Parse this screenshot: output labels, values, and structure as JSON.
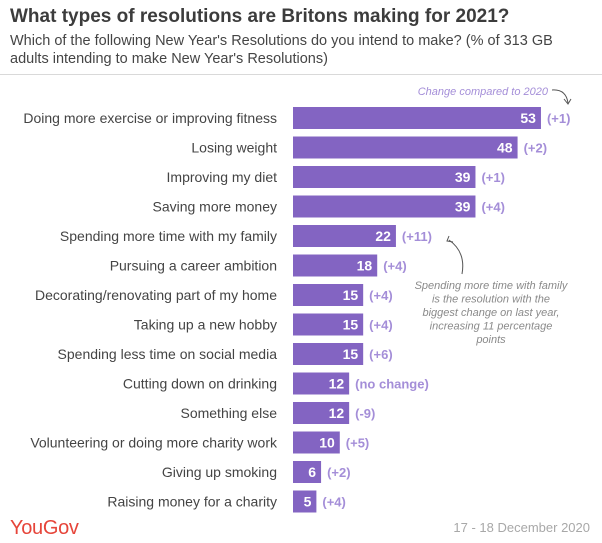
{
  "header": {
    "title": "What types of resolutions are Britons making for 2021?",
    "subtitle": "Which of the following New Year's Resolutions do you intend to make? (% of 313 GB adults intending to make New Year's Resolutions)"
  },
  "footer": {
    "brand": "YouGov",
    "date": "17 - 18 December 2020"
  },
  "colors": {
    "bar": "#8364c2",
    "change_text": "#a48ed8",
    "annotation_text": "#8a8a8a",
    "brand": "#e6453a"
  },
  "chart_data": {
    "type": "bar",
    "orientation": "horizontal",
    "categories": [
      "Doing more exercise or improving fitness",
      "Losing weight",
      "Improving my diet",
      "Saving more money",
      "Spending more time with my family",
      "Pursuing a career ambition",
      "Decorating/renovating part of my home",
      "Taking up a new hobby",
      "Spending less time on social media",
      "Cutting down on drinking",
      "Something else",
      "Volunteering or doing more charity work",
      "Giving up smoking",
      "Raising money for a charity"
    ],
    "values": [
      53,
      48,
      39,
      39,
      22,
      18,
      15,
      15,
      15,
      12,
      12,
      10,
      6,
      5
    ],
    "change_labels": [
      "(+1)",
      "(+2)",
      "(+1)",
      "(+4)",
      "(+11)",
      "(+4)",
      "(+4)",
      "(+4)",
      "(+6)",
      "(no change)",
      "(-9)",
      "(+5)",
      "(+2)",
      "(+4)"
    ],
    "xlim": [
      0,
      56
    ],
    "grid": false,
    "annotations": [
      "Change compared to 2020",
      "Spending more time with family is the resolution with the biggest change on last year, increasing 11 percentage points"
    ]
  }
}
